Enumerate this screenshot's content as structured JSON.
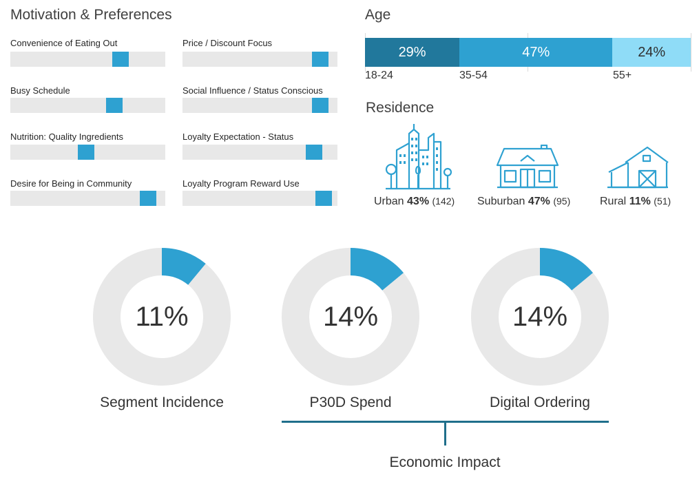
{
  "motivation": {
    "title": "Motivation & Preferences",
    "items": [
      {
        "label": "Convenience of Eating Out",
        "value": 0.71
      },
      {
        "label": "Price / Discount Focus",
        "value": 0.89
      },
      {
        "label": "Busy Schedule",
        "value": 0.67
      },
      {
        "label": "Social Influence / Status Conscious",
        "value": 0.89
      },
      {
        "label": "Nutrition: Quality Ingredients",
        "value": 0.49
      },
      {
        "label": "Loyalty Expectation - Status",
        "value": 0.85
      },
      {
        "label": "Desire for Being in Community",
        "value": 0.89
      },
      {
        "label": "Loyalty Program Reward Use",
        "value": 0.91
      }
    ],
    "accent": "#2ea1d1",
    "track_color": "#e8e8e8"
  },
  "age": {
    "title": "Age",
    "segments": [
      {
        "label": "29%",
        "value": 29,
        "color": "#21789c"
      },
      {
        "label": "47%",
        "value": 47,
        "color": "#2ea1d1"
      },
      {
        "label": "24%",
        "value": 24,
        "color": "#8fdcf7"
      }
    ],
    "ticks": [
      "18-24",
      "35-54",
      "55+"
    ]
  },
  "residence": {
    "title": "Residence",
    "items": [
      {
        "name": "Urban",
        "pct": "43%",
        "n": "(142)",
        "icon": "city-buildings-icon"
      },
      {
        "name": "Suburban",
        "pct": "47%",
        "n": "(95)",
        "icon": "house-icon"
      },
      {
        "name": "Rural",
        "pct": "11%",
        "n": "(51)",
        "icon": "barn-icon"
      }
    ],
    "icon_color": "#2ea1d1"
  },
  "chart_data": [
    {
      "type": "pie",
      "title": "Segment Incidence",
      "values": [
        11,
        89
      ],
      "label": "11%",
      "colors": [
        "#2ea1d1",
        "#e8e8e8"
      ]
    },
    {
      "type": "pie",
      "title": "P30D Spend",
      "values": [
        14,
        86
      ],
      "label": "14%",
      "colors": [
        "#2ea1d1",
        "#e8e8e8"
      ]
    },
    {
      "type": "pie",
      "title": "Digital Ordering",
      "values": [
        14,
        86
      ],
      "label": "14%",
      "colors": [
        "#2ea1d1",
        "#e8e8e8"
      ]
    }
  ],
  "economic_impact": {
    "label": "Economic Impact",
    "line_color": "#1f6f8b"
  }
}
